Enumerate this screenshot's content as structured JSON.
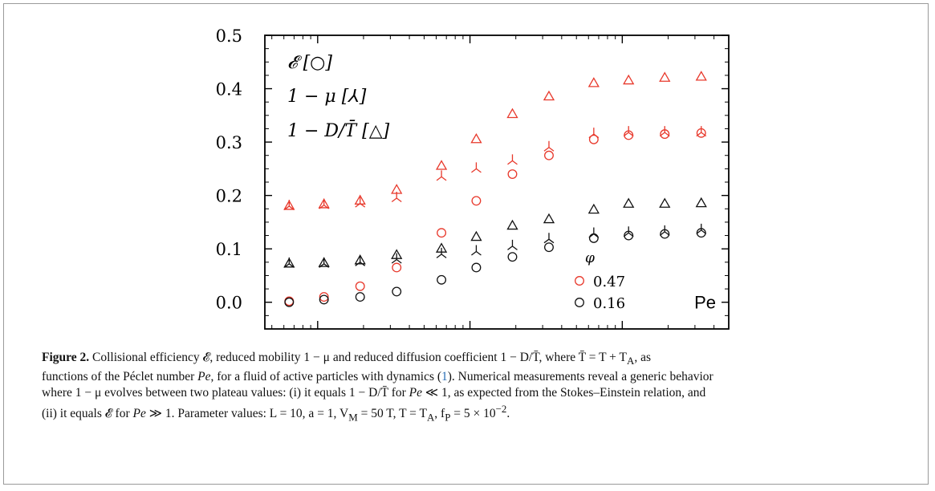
{
  "chart_data": {
    "type": "scatter",
    "xscale": "log",
    "xlim": [
      0.045,
      50
    ],
    "ylim": [
      -0.05,
      0.5
    ],
    "yticks": [
      "0.0",
      "0.1",
      "0.2",
      "0.3",
      "0.4",
      "0.5"
    ],
    "xtick_values": [
      0.1,
      1,
      10
    ],
    "xtick_base": "10",
    "xtick_exponents": [
      "−1",
      "0",
      "1"
    ],
    "xlabel": "Pe",
    "legend_markers": [
      {
        "symbol": "𝓔",
        "marker": "○"
      },
      {
        "symbol": "1 − μ",
        "marker": "⅄"
      },
      {
        "symbol": "1 − D/T̄",
        "marker": "△"
      }
    ],
    "legend_phi": {
      "title": "φ",
      "entries": [
        "0.47",
        "0.16"
      ]
    },
    "colors": {
      "phi047": "#e8382b",
      "phi016": "#111111"
    },
    "x": [
      0.065,
      0.11,
      0.19,
      0.33,
      0.65,
      1.1,
      1.9,
      3.3,
      6.5,
      11,
      19,
      33
    ],
    "series": [
      {
        "phi": "0.47",
        "quantity": "E",
        "marker": "circle",
        "values": [
          0.002,
          0.01,
          0.03,
          0.065,
          0.13,
          0.19,
          0.24,
          0.275,
          0.305,
          0.313,
          0.315,
          0.317
        ]
      },
      {
        "phi": "0.47",
        "quantity": "1-mu",
        "marker": "tri",
        "values": [
          0.18,
          0.182,
          0.185,
          0.195,
          0.235,
          0.25,
          0.265,
          0.29,
          0.315,
          0.318,
          0.318,
          0.318
        ]
      },
      {
        "phi": "0.47",
        "quantity": "1-D/T",
        "marker": "triangle",
        "values": [
          0.18,
          0.183,
          0.19,
          0.21,
          0.255,
          0.305,
          0.352,
          0.385,
          0.41,
          0.415,
          0.42,
          0.422
        ]
      },
      {
        "phi": "0.16",
        "quantity": "E",
        "marker": "circle",
        "values": [
          0.0,
          0.005,
          0.01,
          0.02,
          0.042,
          0.065,
          0.085,
          0.103,
          0.12,
          0.125,
          0.128,
          0.13
        ]
      },
      {
        "phi": "0.16",
        "quantity": "1-mu",
        "marker": "tri",
        "values": [
          0.072,
          0.072,
          0.075,
          0.08,
          0.09,
          0.095,
          0.105,
          0.118,
          0.128,
          0.13,
          0.132,
          0.135
        ]
      },
      {
        "phi": "0.16",
        "quantity": "1-D/T",
        "marker": "triangle",
        "values": [
          0.072,
          0.073,
          0.078,
          0.088,
          0.1,
          0.122,
          0.143,
          0.155,
          0.173,
          0.184,
          0.184,
          0.185
        ]
      }
    ]
  },
  "caption": {
    "label": "Figure 2.",
    "line1": "Collisional efficiency 𝓔, reduced mobility 1 − μ and reduced diffusion coefficient 1 − D/T̄, where T̄ = T + T",
    "line1_sub": "A",
    "line1_end": ", as",
    "line2a": "functions of the Péclet number ",
    "pe": "Pe",
    "line2b": ", for a fluid of active particles with dynamics (",
    "ref": "1",
    "line2c": "). Numerical measurements reveal a generic behavior",
    "line3a": "where 1 − μ evolves between two plateau values: (i) it equals 1 − D/T̄ for ",
    "line3b": " ≪ 1, as expected from the Stokes–Einstein relation, and",
    "line4a": "(ii) it equals 𝓔 for ",
    "line4b": " ≫ 1. Parameter values: L = 10, a = 1, V",
    "line4_sub": "M",
    "line4c": " = 50 T, T = T",
    "line4_sub2": "A",
    "line4d": ", f",
    "line4_sub3": "P",
    "line4e": " = 5 × 10",
    "line4_sup": "−2",
    "line4f": "."
  }
}
